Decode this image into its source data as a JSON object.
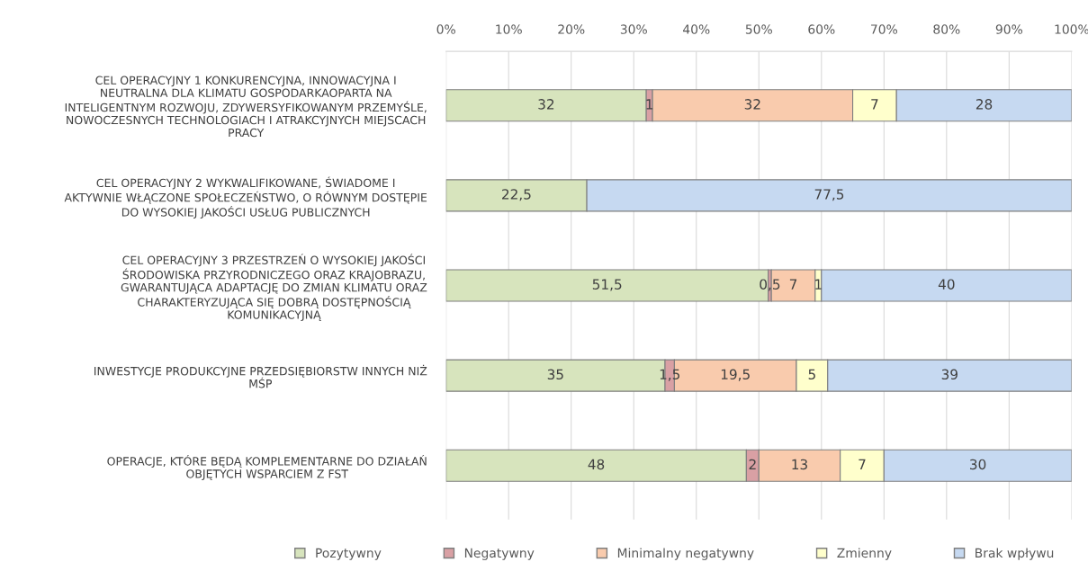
{
  "chart_data": {
    "type": "bar",
    "orientation": "horizontal",
    "stacked": true,
    "categories": [
      "CEL OPERACYJNY 1 KONKURENCYJNA, INNOWACYJNA I NEUTRALNA DLA KLIMATU GOSPODARKAOPARTA NA INTELIGENTNYM ROZWOJU, ZDYWERSYFIKOWANYM PRZEMYŚLE, NOWOCZESNYCH TECHNOLOGIACH I ATRAKCYJNYCH MIEJSCACH PRACY",
      "CEL OPERACYJNY 2 WYKWALIFIKOWANE, ŚWIADOME I AKTYWNIE WŁĄCZONE SPOŁECZEŃSTWO, O RÓWNYM DOSTĘPIE DO WYSOKIEJ JAKOŚCI USŁUG PUBLICZNYCH",
      "CEL OPERACYJNY 3 PRZESTRZEŃ O WYSOKIEJ JAKOŚCI ŚRODOWISKA PRZYRODNICZEGO ORAZ KRAJOBRAZU, GWARANTUJĄCA ADAPTACJĘ DO ZMIAN KLIMATU ORAZ CHARAKTERYZUJĄCA SIĘ DOBRĄ DOSTĘPNOŚCIĄ KOMUNIKACYJNĄ",
      "INWESTYCJE PRODUKCYJNE PRZEDSIĘBIORSTW INNYCH NIŻ MŚP",
      "OPERACJE, KTÓRE BĘDĄ KOMPLEMENTARNE DO DZIAŁAŃ OBJĘTYCH WSPARCIEM Z FST"
    ],
    "series": [
      {
        "name": "Pozytywny",
        "color": "#d7e4bd",
        "values": [
          32,
          22.5,
          51.5,
          35,
          48
        ],
        "value_labels": [
          "32",
          "22,5",
          "51,5",
          "35",
          "48"
        ]
      },
      {
        "name": "Negatywny",
        "color": "#d9a0a4",
        "values": [
          1,
          null,
          0.5,
          1.5,
          2
        ],
        "value_labels": [
          "1",
          null,
          "0,5",
          "1,5",
          "2"
        ]
      },
      {
        "name": "Minimalny negatywny",
        "color": "#f9cbad",
        "values": [
          32,
          null,
          7,
          19.5,
          13
        ],
        "value_labels": [
          "32",
          null,
          "7",
          "19,5",
          "13"
        ]
      },
      {
        "name": "Zmienny",
        "color": "#ffffcc",
        "values": [
          7,
          null,
          1,
          5,
          7
        ],
        "value_labels": [
          "7",
          null,
          "1",
          "5",
          "7"
        ]
      },
      {
        "name": "Brak wpływu",
        "color": "#c6d9f1",
        "values": [
          28,
          77.5,
          40,
          39,
          30
        ],
        "value_labels": [
          "28",
          "77,5",
          "40",
          "39",
          "30"
        ]
      }
    ],
    "xlim": [
      0,
      100
    ],
    "xticks": [
      {
        "value": 0,
        "label": "0%"
      },
      {
        "value": 10,
        "label": "10%"
      },
      {
        "value": 20,
        "label": "20%"
      },
      {
        "value": 30,
        "label": "30%"
      },
      {
        "value": 40,
        "label": "40%"
      },
      {
        "value": 50,
        "label": "50%"
      },
      {
        "value": 60,
        "label": "60%"
      },
      {
        "value": 70,
        "label": "70%"
      },
      {
        "value": 80,
        "label": "80%"
      },
      {
        "value": 90,
        "label": "90%"
      },
      {
        "value": 100,
        "label": "100%"
      }
    ],
    "grid": "x",
    "legend": "bottom"
  }
}
